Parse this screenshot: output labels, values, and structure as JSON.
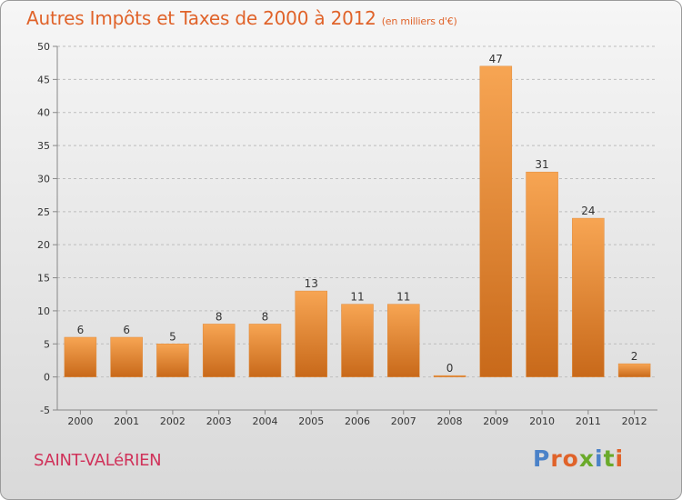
{
  "header": {
    "title": "Autres Impôts et Taxes de 2000 à 2012",
    "subtitle": "(en milliers d'€)"
  },
  "footer": {
    "place": "SAINT-VALéRIEN",
    "logo": "Proxiti"
  },
  "colors": {
    "bar_light": "#f7a553",
    "bar_dark": "#c8691a",
    "title": "#e0632a",
    "place": "#d0325a",
    "logo_letters": [
      "#4b82c8",
      "#e0632a",
      "#e0632a",
      "#6aaa2a",
      "#4b82c8",
      "#6aaa2a",
      "#e0632a"
    ]
  },
  "chart_data": {
    "type": "bar",
    "title": "Autres Impôts et Taxes de 2000 à 2012",
    "subtitle": "(en milliers d'€)",
    "categories": [
      "2000",
      "2001",
      "2002",
      "2003",
      "2004",
      "2005",
      "2006",
      "2007",
      "2008",
      "2009",
      "2010",
      "2011",
      "2012"
    ],
    "values": [
      6,
      6,
      5,
      8,
      8,
      13,
      11,
      11,
      0,
      47,
      31,
      24,
      2
    ],
    "value_labels": [
      "6",
      "6",
      "5",
      "8",
      "8",
      "13",
      "11",
      "11",
      "0",
      "47",
      "31",
      "24",
      "2"
    ],
    "yticks": [
      -5,
      0,
      5,
      10,
      15,
      20,
      25,
      30,
      35,
      40,
      45,
      50
    ],
    "ylim": [
      -5,
      50
    ],
    "grid": "horizontal dashed",
    "legend": "none"
  }
}
